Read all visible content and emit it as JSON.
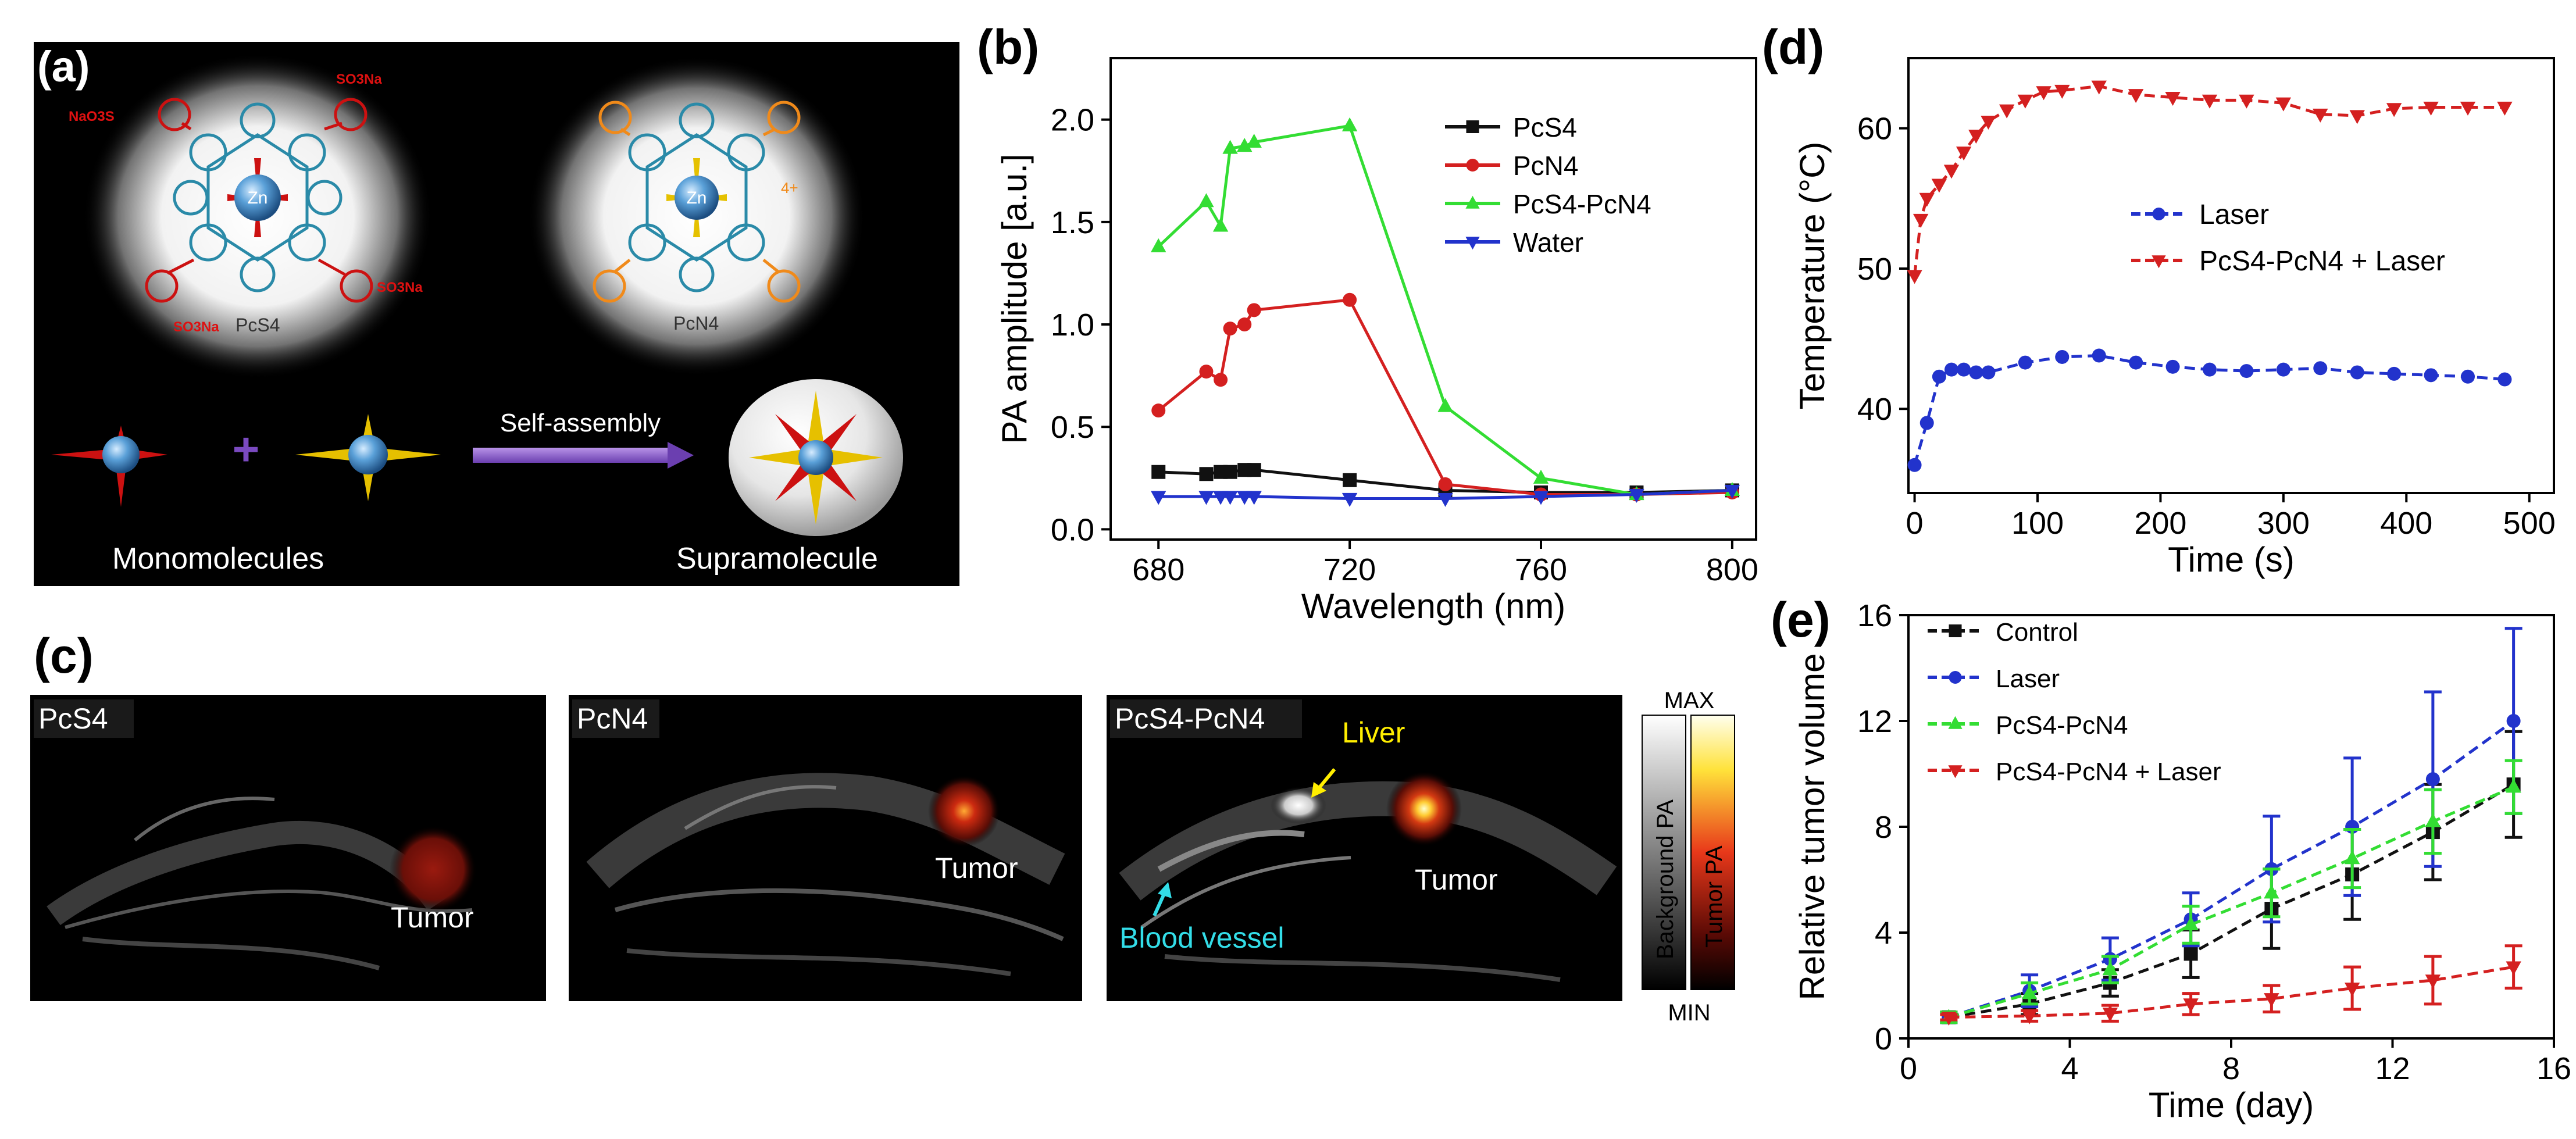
{
  "panel_a": {
    "label": "(a)",
    "molecule_left": {
      "name": "PcS4",
      "center_atom": "Zn",
      "substituent": "SO3Na",
      "substituent_alt": "NaO3S"
    },
    "molecule_right": {
      "name": "PcN4",
      "center_atom": "Zn",
      "charge": "4+"
    },
    "plus_sign": "+",
    "arrow_label": "Self-assembly",
    "left_caption": "Monomolecules",
    "right_caption": "Supramolecule"
  },
  "panel_c": {
    "label": "(c)",
    "images": [
      {
        "title": "PcS4",
        "annotations": [
          "Tumor"
        ]
      },
      {
        "title": "PcN4",
        "annotations": [
          "Tumor"
        ]
      },
      {
        "title": "PcS4-PcN4",
        "annotations": [
          "Liver",
          "Tumor",
          "Blood vessel"
        ]
      }
    ],
    "colorbar": {
      "max": "MAX",
      "min": "MIN",
      "left_label": "Background PA",
      "right_label": "Tumor PA"
    }
  },
  "chart_data": [
    {
      "panel": "(b)",
      "type": "line",
      "xlabel": "Wavelength (nm)",
      "ylabel": "PA amplitude [a.u.]",
      "xlim": [
        670,
        805
      ],
      "ylim": [
        -0.05,
        2.3
      ],
      "xticks": [
        680,
        720,
        760,
        800
      ],
      "yticks": [
        0.0,
        0.5,
        1.0,
        1.5,
        2.0
      ],
      "ytick_labels": [
        "0.0",
        "0.5",
        "1.0",
        "1.5",
        "2.0"
      ],
      "legend_position": "top-right",
      "series": [
        {
          "name": "PcS4",
          "color": "#111111",
          "marker": "square",
          "x": [
            680,
            690,
            693,
            695,
            698,
            700,
            720,
            740,
            760,
            780,
            800
          ],
          "values": [
            0.28,
            0.27,
            0.28,
            0.28,
            0.29,
            0.29,
            0.24,
            0.19,
            0.18,
            0.18,
            0.19
          ]
        },
        {
          "name": "PcN4",
          "color": "#d42020",
          "marker": "circle",
          "x": [
            680,
            690,
            693,
            695,
            698,
            700,
            720,
            740,
            760,
            780,
            800
          ],
          "values": [
            0.58,
            0.77,
            0.73,
            0.98,
            1.0,
            1.07,
            1.12,
            0.22,
            0.17,
            0.17,
            0.18
          ]
        },
        {
          "name": "PcS4-PcN4",
          "color": "#33dd33",
          "marker": "triangle-up",
          "x": [
            680,
            690,
            693,
            695,
            698,
            700,
            720,
            740,
            760,
            780,
            800
          ],
          "values": [
            1.38,
            1.6,
            1.48,
            1.86,
            1.87,
            1.89,
            1.97,
            0.6,
            0.25,
            0.17,
            0.19
          ]
        },
        {
          "name": "Water",
          "color": "#2233cc",
          "marker": "triangle-down",
          "x": [
            680,
            690,
            693,
            695,
            698,
            700,
            720,
            740,
            760,
            780,
            800
          ],
          "values": [
            0.16,
            0.16,
            0.16,
            0.16,
            0.16,
            0.16,
            0.15,
            0.15,
            0.16,
            0.17,
            0.19
          ]
        }
      ]
    },
    {
      "panel": "(d)",
      "type": "line",
      "xlabel": "Time (s)",
      "ylabel": "Temperature (°C)",
      "xlim": [
        -5,
        520
      ],
      "ylim": [
        34,
        65
      ],
      "xticks": [
        0,
        100,
        200,
        300,
        400,
        500
      ],
      "yticks": [
        40,
        50,
        60
      ],
      "legend_position": "center-right",
      "series": [
        {
          "name": "Laser",
          "color": "#2233cc",
          "marker": "circle",
          "x": [
            0,
            10,
            20,
            30,
            40,
            50,
            60,
            90,
            120,
            150,
            180,
            210,
            240,
            270,
            300,
            330,
            360,
            390,
            420,
            450,
            480
          ],
          "values": [
            36,
            39,
            42.3,
            42.8,
            42.8,
            42.6,
            42.6,
            43.3,
            43.7,
            43.8,
            43.3,
            43.0,
            42.8,
            42.7,
            42.8,
            42.9,
            42.6,
            42.5,
            42.4,
            42.3,
            42.1
          ]
        },
        {
          "name": "PcS4-PcN4 + Laser",
          "color": "#d42020",
          "marker": "triangle-down",
          "x": [
            0,
            5,
            10,
            20,
            30,
            40,
            50,
            60,
            75,
            90,
            105,
            120,
            150,
            180,
            210,
            240,
            270,
            300,
            330,
            360,
            390,
            420,
            450,
            480
          ],
          "values": [
            49.5,
            53.5,
            55,
            56,
            57,
            58.3,
            59.5,
            60.5,
            61.3,
            62,
            62.6,
            62.7,
            63,
            62.4,
            62.2,
            62.0,
            62.0,
            61.8,
            61.0,
            60.9,
            61.4,
            61.5,
            61.5,
            61.5
          ]
        }
      ]
    },
    {
      "panel": "(e)",
      "type": "line",
      "xlabel": "Time (day)",
      "ylabel": "Relative tumor volume",
      "xlim": [
        0,
        16
      ],
      "ylim": [
        0,
        16
      ],
      "xticks": [
        0,
        4,
        8,
        12,
        16
      ],
      "yticks": [
        0,
        4,
        8,
        12,
        16
      ],
      "legend_position": "top-left",
      "x": [
        1,
        3,
        5,
        7,
        9,
        11,
        13,
        15
      ],
      "series": [
        {
          "name": "Control",
          "color": "#111111",
          "marker": "square",
          "values": [
            0.8,
            1.3,
            2.1,
            3.2,
            4.9,
            6.2,
            7.8,
            9.6
          ],
          "errors": [
            0.2,
            0.4,
            0.5,
            0.9,
            1.5,
            1.7,
            1.8,
            2.0
          ]
        },
        {
          "name": "Laser",
          "color": "#2233cc",
          "marker": "circle",
          "values": [
            0.8,
            1.8,
            3.0,
            4.5,
            6.4,
            8.0,
            9.8,
            12.0
          ],
          "errors": [
            0.2,
            0.6,
            0.8,
            1.0,
            2.0,
            2.6,
            3.3,
            3.5
          ]
        },
        {
          "name": "PcS4-PcN4",
          "color": "#33dd33",
          "marker": "triangle-up",
          "values": [
            0.8,
            1.7,
            2.6,
            4.3,
            5.5,
            6.8,
            8.2,
            9.5
          ],
          "errors": [
            0.2,
            0.4,
            0.5,
            0.7,
            0.9,
            1.1,
            1.2,
            1.0
          ]
        },
        {
          "name": "PcS4-PcN4 + Laser",
          "color": "#d42020",
          "marker": "triangle-down",
          "values": [
            0.8,
            0.85,
            0.95,
            1.3,
            1.5,
            1.9,
            2.2,
            2.7
          ],
          "errors": [
            0.1,
            0.2,
            0.3,
            0.4,
            0.5,
            0.8,
            0.9,
            0.8
          ]
        }
      ]
    }
  ]
}
